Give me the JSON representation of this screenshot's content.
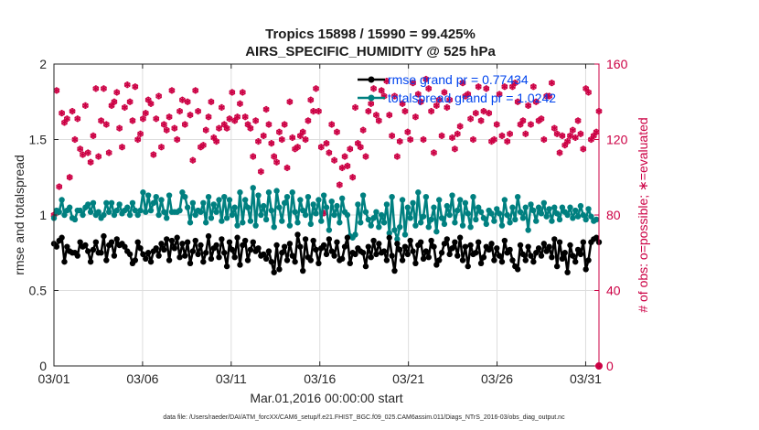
{
  "chart_data": {
    "type": "line",
    "title_line1": "Tropics 15898 / 15990 = 99.425%",
    "title_line2": "AIRS_SPECIFIC_HUMIDITY @ 525 hPa",
    "xlabel": "Mar.01,2016 00:00:00 start",
    "ylabel_left": "rmse and totalspread",
    "ylabel_right": "# of obs: o=possible; ∗=evaluated",
    "footer": "data file: /Users/raeder/DAI/ATM_forcXX/CAM6_setup/f.e21.FHIST_BGC.f09_025.CAM6assim.011/Diags_NTrS_2016-03/obs_diag_output.nc",
    "x_tick_labels": [
      "03/01",
      "03/06",
      "03/11",
      "03/16",
      "03/21",
      "03/26",
      "03/31"
    ],
    "x_tick_days": [
      1,
      6,
      11,
      16,
      21,
      26,
      31
    ],
    "xlim": [
      1,
      31.75
    ],
    "ylim_left": [
      0,
      2
    ],
    "y_ticks_left": [
      "0",
      "0.5",
      "1",
      "1.5",
      "2"
    ],
    "ylim_right": [
      0,
      160
    ],
    "y_ticks_right": [
      "0",
      "40",
      "80",
      "120",
      "160"
    ],
    "colors": {
      "rmse": "#000000",
      "spread": "#008080",
      "obs": "#cc0044",
      "legend_text": "#0044ee",
      "grid": "#dddddd"
    },
    "legend": [
      {
        "name": "rmse",
        "label": "rmse grand pr = 0.77434"
      },
      {
        "name": "totalspread",
        "label": "totalspread grand pr = 1.0242"
      }
    ],
    "series": [
      {
        "name": "rmse",
        "axis": "left",
        "values": [
          0.81,
          0.79,
          0.83,
          0.85,
          0.69,
          0.79,
          0.76,
          0.75,
          0.75,
          0.73,
          0.82,
          0.79,
          0.8,
          0.76,
          0.69,
          0.77,
          0.82,
          0.75,
          0.75,
          0.86,
          0.7,
          0.8,
          0.82,
          0.73,
          0.84,
          0.8,
          0.81,
          0.79,
          0.76,
          0.74,
          0.68,
          0.7,
          0.82,
          0.78,
          0.74,
          0.71,
          0.75,
          0.69,
          0.76,
          0.78,
          0.73,
          0.81,
          0.77,
          0.84,
          0.7,
          0.83,
          0.78,
          0.85,
          0.72,
          0.81,
          0.73,
          0.82,
          0.68,
          0.76,
          0.83,
          0.74,
          0.8,
          0.69,
          0.75,
          0.86,
          0.71,
          0.78,
          0.8,
          0.72,
          0.84,
          0.75,
          0.66,
          0.82,
          0.77,
          0.72,
          0.85,
          0.67,
          0.8,
          0.83,
          0.7,
          0.77,
          0.82,
          0.76,
          0.78,
          0.73,
          0.74,
          0.71,
          0.76,
          0.69,
          0.62,
          0.8,
          0.64,
          0.75,
          0.79,
          0.7,
          0.81,
          0.73,
          0.69,
          0.87,
          0.79,
          0.63,
          0.84,
          0.72,
          0.7,
          0.83,
          0.77,
          0.68,
          0.78,
          0.8,
          0.74,
          0.84,
          0.76,
          0.73,
          0.82,
          0.7,
          0.71,
          0.79,
          0.85,
          0.68,
          0.75,
          0.74,
          0.78,
          0.76,
          0.75,
          0.66,
          0.79,
          0.72,
          0.83,
          0.74,
          0.81,
          0.75,
          0.76,
          0.7,
          0.85,
          0.73,
          0.63,
          0.81,
          0.77,
          0.7,
          0.79,
          0.74,
          0.83,
          0.76,
          0.68,
          0.8,
          0.82,
          0.71,
          0.76,
          0.72,
          0.83,
          0.79,
          0.67,
          0.7,
          0.75,
          0.81,
          0.84,
          0.74,
          0.78,
          0.82,
          0.73,
          0.85,
          0.7,
          0.79,
          0.66,
          0.8,
          0.74,
          0.75,
          0.82,
          0.68,
          0.72,
          0.79,
          0.77,
          0.81,
          0.7,
          0.78,
          0.73,
          0.69,
          0.83,
          0.75,
          0.77,
          0.7,
          0.66,
          0.64,
          0.8,
          0.74,
          0.7,
          0.79,
          0.73,
          0.69,
          0.75,
          0.78,
          0.73,
          0.81,
          0.76,
          0.79,
          0.72,
          0.84,
          0.66,
          0.82,
          0.71,
          0.75,
          0.62,
          0.8,
          0.73,
          0.69,
          0.77,
          0.74,
          0.82,
          0.64,
          0.7,
          0.82,
          0.84,
          0.85,
          0.82
        ]
      },
      {
        "name": "totalspread",
        "axis": "left",
        "values": [
          0.98,
          1.03,
          1.02,
          1.1,
          1.0,
          1.03,
          1.05,
          0.98,
          0.97,
          1.03,
          1.03,
          1.0,
          1.05,
          1.07,
          1.02,
          1.08,
          1.0,
          1.02,
          0.98,
          1.0,
          1.08,
          1.02,
          1.08,
          1.0,
          1.03,
          1.07,
          1.01,
          1.03,
          1.05,
          1.0,
          1.08,
          1.03,
          1.0,
          1.03,
          1.15,
          1.02,
          1.13,
          1.03,
          1.08,
          1.12,
          1.0,
          1.1,
          1.02,
          0.98,
          1.13,
          1.02,
          1.02,
          1.02,
          1.03,
          1.15,
          1.12,
          1.05,
          0.95,
          1.08,
          1.0,
          1.03,
          1.02,
          1.08,
          0.95,
          1.12,
          0.98,
          1.07,
          1.02,
          1.1,
          0.96,
          1.12,
          0.98,
          1.1,
          1.0,
          1.05,
          0.93,
          1.15,
          0.95,
          1.1,
          1.05,
          0.96,
          1.18,
          0.93,
          1.13,
          1.0,
          1.06,
          0.97,
          1.15,
          1.03,
          0.92,
          1.16,
          1.05,
          0.96,
          1.08,
          1.12,
          0.93,
          1.15,
          1.02,
          0.95,
          1.1,
          1.03,
          1.0,
          1.12,
          0.94,
          1.07,
          1.01,
          1.1,
          0.96,
          1.13,
          1.05,
          0.9,
          1.09,
          1.0,
          1.06,
          0.95,
          1.11,
          1.02,
          1.0,
          0.86,
          0.85,
          0.87,
          1.07,
          0.95,
          1.13,
          1.02,
          0.97,
          0.93,
          0.98,
          1.02,
          0.92,
          1.0,
          0.95,
          1.07,
          0.88,
          1.12,
          0.9,
          0.84,
          0.92,
          1.1,
          0.87,
          1.05,
          0.98,
          1.08,
          0.93,
          1.15,
          0.95,
          0.99,
          1.12,
          0.92,
          0.97,
          1.05,
          0.89,
          1.1,
          0.98,
          0.94,
          1.06,
          1.0,
          1.13,
          0.95,
          1.03,
          1.1,
          0.93,
          1.08,
          1.01,
          0.92,
          1.12,
          0.97,
          1.05,
          1.02,
          0.98,
          0.94,
          1.03,
          1.01,
          0.96,
          1.04,
          1.01,
          0.93,
          1.1,
          1.0,
          0.95,
          1.05,
          0.97,
          1.12,
          1.02,
          0.98,
          1.05,
          0.9,
          1.07,
          1.03,
          0.96,
          1.05,
          1.01,
          1.08,
          0.99,
          1.04,
          0.96,
          1.05,
          1.01,
          0.97,
          1.05,
          1.02,
          1.0,
          1.05,
          0.98,
          1.03,
          0.99,
          1.06,
          1.0,
          0.97,
          1.04,
          0.99,
          0.96,
          0.97
        ]
      },
      {
        "name": "obs_evaluated",
        "axis": "right",
        "values": [
          80,
          146,
          95,
          134,
          129,
          131,
          100,
          135,
          120,
          131,
          115,
          112,
          138,
          113,
          108,
          122,
          147,
          111,
          130,
          147,
          128,
          113,
          138,
          140,
          145,
          126,
          116,
          137,
          149,
          140,
          130,
          148,
          120,
          123,
          131,
          134,
          141,
          139,
          112,
          131,
          143,
          116,
          128,
          125,
          132,
          146,
          126,
          120,
          135,
          141,
          128,
          140,
          133,
          109,
          146,
          135,
          116,
          117,
          125,
          132,
          140,
          121,
          119,
          126,
          137,
          128,
          126,
          131,
          145,
          130,
          132,
          139,
          145,
          132,
          128,
          126,
          111,
          130,
          119,
          103,
          122,
          136,
          128,
          118,
          111,
          108,
          124,
          120,
          128,
          105,
          140,
          121,
          115,
          116,
          122,
          124,
          120,
          130,
          141,
          135,
          147,
          135,
          116,
          81,
          118,
          113,
          128,
          109,
          124,
          96,
          105,
          111,
          106,
          115,
          100,
          137,
          118,
          116,
          125,
          111,
          135,
          139,
          147,
          133,
          130,
          146,
          143,
          151,
          133,
          122,
          143,
          111,
          119,
          139,
          135,
          124,
          120,
          150,
          132,
          144,
          140,
          120,
          152,
          147,
          135,
          113,
          138,
          141,
          122,
          145,
          137,
          141,
          121,
          115,
          123,
          127,
          150,
          143,
          144,
          131,
          120,
          134,
          148,
          130,
          135,
          147,
          134,
          119,
          120,
          128,
          144,
          122,
          148,
          119,
          123,
          148,
          150,
          140,
          128,
          130,
          123,
          138,
          128,
          148,
          140,
          130,
          131,
          120,
          143,
          143,
          150,
          126,
          123,
          113,
          122,
          117,
          119,
          122,
          125,
          121,
          130,
          123,
          115,
          147,
          145,
          120,
          122,
          124,
          135
        ]
      },
      {
        "name": "obs_possible",
        "axis": "right",
        "values": [
          80,
          146,
          95,
          134,
          129,
          131,
          100,
          135,
          120,
          131,
          115,
          112,
          138,
          113,
          108,
          122,
          147,
          111,
          130,
          147,
          128,
          113,
          138,
          140,
          145,
          126,
          116,
          137,
          149,
          140,
          130,
          148,
          120,
          123,
          131,
          134,
          141,
          139,
          112,
          131,
          143,
          116,
          128,
          125,
          132,
          146,
          126,
          120,
          135,
          141,
          128,
          140,
          133,
          109,
          146,
          135,
          116,
          117,
          125,
          132,
          140,
          121,
          119,
          126,
          137,
          128,
          126,
          131,
          145,
          130,
          132,
          139,
          145,
          132,
          128,
          126,
          111,
          130,
          119,
          103,
          122,
          136,
          128,
          118,
          111,
          108,
          124,
          120,
          128,
          105,
          140,
          121,
          115,
          116,
          122,
          124,
          120,
          130,
          141,
          135,
          147,
          135,
          116,
          81,
          118,
          113,
          128,
          109,
          124,
          96,
          105,
          111,
          106,
          115,
          100,
          137,
          118,
          116,
          125,
          111,
          135,
          139,
          147,
          133,
          130,
          146,
          143,
          151,
          133,
          122,
          143,
          111,
          119,
          139,
          135,
          124,
          120,
          150,
          132,
          144,
          140,
          120,
          152,
          147,
          135,
          113,
          138,
          141,
          122,
          145,
          137,
          141,
          121,
          115,
          123,
          127,
          150,
          143,
          144,
          131,
          120,
          134,
          148,
          130,
          135,
          147,
          134,
          119,
          120,
          128,
          144,
          122,
          148,
          119,
          123,
          148,
          150,
          140,
          128,
          130,
          123,
          138,
          128,
          148,
          140,
          130,
          131,
          120,
          143,
          143,
          150,
          126,
          123,
          113,
          122,
          117,
          119,
          122,
          125,
          121,
          130,
          123,
          115,
          147,
          145,
          120,
          122,
          124,
          135
        ]
      }
    ]
  }
}
